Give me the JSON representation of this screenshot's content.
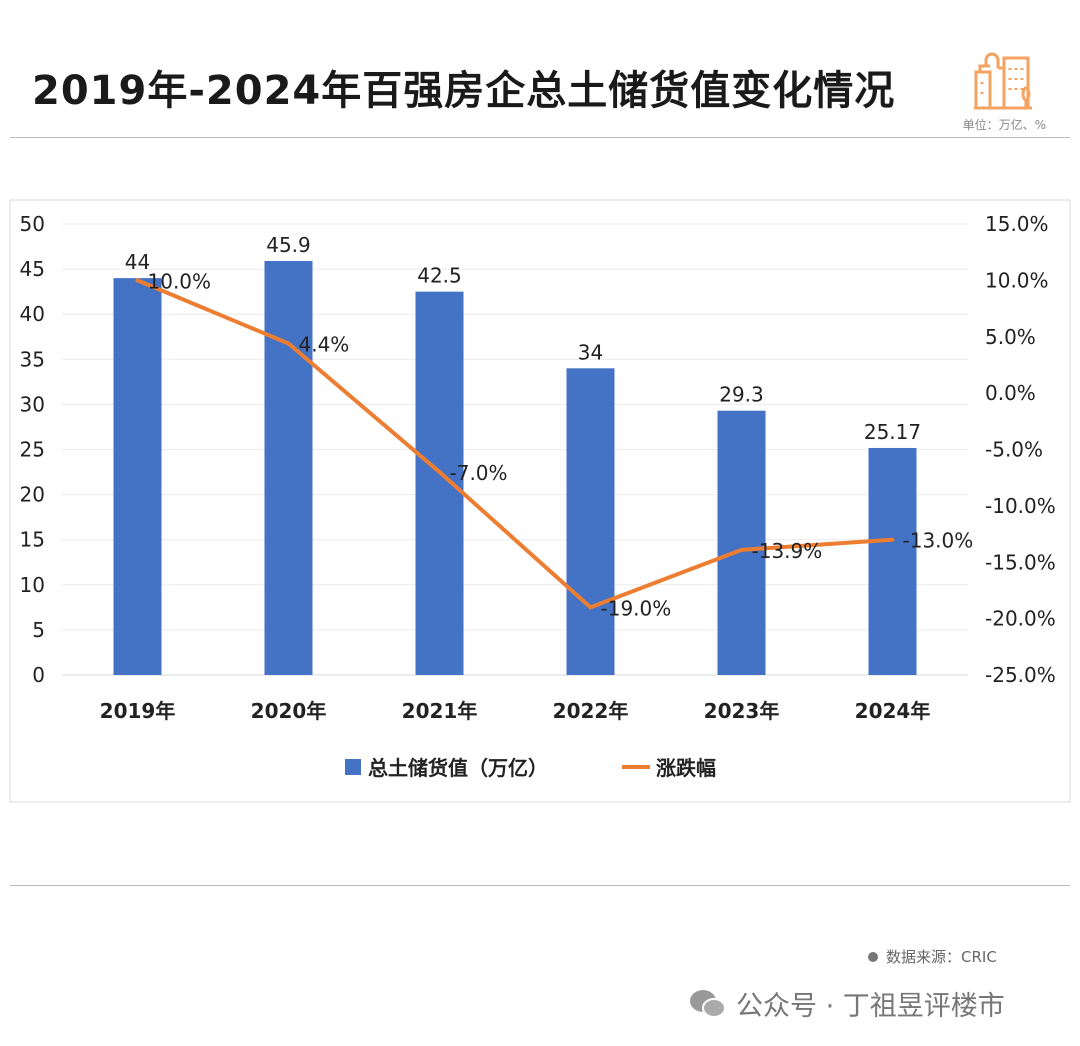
{
  "header": {
    "title": "2019年-2024年百强房企总土储货值变化情况",
    "unit": "单位：万亿、%",
    "icon": "buildings-icon"
  },
  "footer": {
    "source": "数据来源：CRIC",
    "brand": "公众号 · 丁祖昱评楼市",
    "brand_icon": "wechat-icon"
  },
  "colors": {
    "bar": "#4472C4",
    "line": "#ED7D31",
    "icon": "#F4A460"
  },
  "chart_data": {
    "type": "bar+line",
    "categories": [
      "2019年",
      "2020年",
      "2021年",
      "2022年",
      "2023年",
      "2024年"
    ],
    "series": [
      {
        "name": "总土储货值（万亿）",
        "type": "bar",
        "axis": "left",
        "values": [
          44,
          45.9,
          42.5,
          34,
          29.3,
          25.17
        ],
        "labels": [
          "44",
          "45.9",
          "42.5",
          "34",
          "29.3",
          "25.17"
        ]
      },
      {
        "name": "涨跌幅",
        "type": "line",
        "axis": "right",
        "values": [
          10.0,
          4.4,
          -7.0,
          -19.0,
          -13.9,
          -13.0
        ],
        "labels": [
          "10.0%",
          "4.4%",
          "-7.0%",
          "-19.0%",
          "-13.9%",
          "-13.0%"
        ]
      }
    ],
    "left_axis": {
      "ylim": [
        0,
        50
      ],
      "ticks": [
        "0",
        "5",
        "10",
        "15",
        "20",
        "25",
        "30",
        "35",
        "40",
        "45",
        "50"
      ]
    },
    "right_axis": {
      "ylim": [
        -25,
        15
      ],
      "ticks": [
        "-25.0%",
        "-20.0%",
        "-15.0%",
        "-10.0%",
        "-5.0%",
        "0.0%",
        "5.0%",
        "10.0%",
        "15.0%"
      ]
    },
    "grid": true,
    "legend": "bottom"
  }
}
